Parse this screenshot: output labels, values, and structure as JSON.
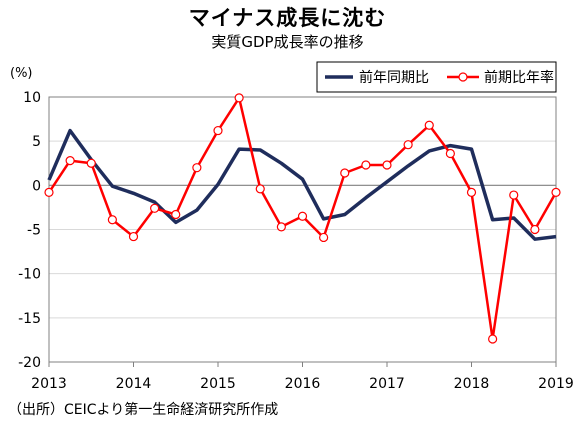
{
  "header": {
    "title": "マイナス成長に沈む",
    "subtitle": "実質GDP成長率の推移",
    "unit": "(%)"
  },
  "footer": {
    "source": "（出所）CEICより第一生命経済研究所作成"
  },
  "colors": {
    "yoy": "#1f2d5c",
    "qoq": "#ff0000",
    "marker_fill": "#ffffff",
    "grid": "#d9d9d9",
    "axis": "#808080"
  },
  "chart_data": {
    "type": "line",
    "title": "実質GDP成長率の推移",
    "xlabel": "",
    "ylabel": "(%)",
    "ylim": [
      -20,
      10
    ],
    "yticks": [
      10,
      5,
      0,
      -5,
      -10,
      -15,
      -20
    ],
    "x_tick_labels": [
      "2013",
      "2014",
      "2015",
      "2016",
      "2017",
      "2018",
      "2019"
    ],
    "x": [
      "2013Q1",
      "2013Q2",
      "2013Q3",
      "2013Q4",
      "2014Q1",
      "2014Q2",
      "2014Q3",
      "2014Q4",
      "2015Q1",
      "2015Q2",
      "2015Q3",
      "2015Q4",
      "2016Q1",
      "2016Q2",
      "2016Q3",
      "2016Q4",
      "2017Q1",
      "2017Q2",
      "2017Q3",
      "2017Q4",
      "2018Q1",
      "2018Q2",
      "2018Q3",
      "2018Q4",
      "2019Q1"
    ],
    "grid": true,
    "legend_position": "top-right",
    "series": [
      {
        "name": "前年同期比",
        "style": "line",
        "values": [
          0.6,
          6.2,
          2.9,
          -0.1,
          -0.9,
          -1.9,
          -4.2,
          -2.8,
          0.1,
          4.1,
          4.0,
          2.5,
          0.7,
          -3.8,
          -3.3,
          -1.4,
          0.4,
          2.2,
          3.9,
          4.5,
          4.1,
          -3.9,
          -3.7,
          -6.1,
          -5.8
        ]
      },
      {
        "name": "前期比年率",
        "style": "line-marker",
        "values": [
          -0.8,
          2.8,
          2.5,
          -3.9,
          -5.8,
          -2.6,
          -3.3,
          2.0,
          6.2,
          9.9,
          -0.4,
          -4.7,
          -3.5,
          -5.9,
          1.4,
          2.3,
          2.3,
          4.6,
          6.8,
          3.6,
          -0.8,
          -17.4,
          -1.1,
          -5.0,
          -0.8
        ]
      }
    ]
  }
}
